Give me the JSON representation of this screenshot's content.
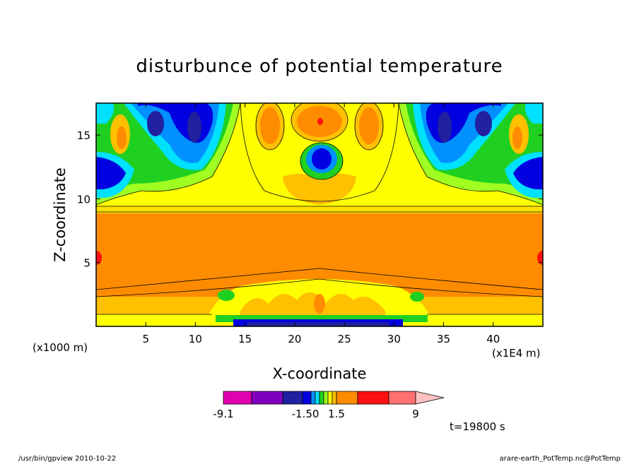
{
  "chart_data": {
    "type": "heatmap",
    "title": "disturbunce of potential temperature",
    "xlabel": "X-coordinate",
    "ylabel": "Z-coordinate",
    "x_unit_left": "(x1000 m)",
    "x_unit_right": "(x1E4 m)",
    "xlim": [
      0,
      45
    ],
    "ylim": [
      0,
      17.5
    ],
    "x_ticks": [
      "5",
      "10",
      "15",
      "20",
      "25",
      "30",
      "35",
      "40"
    ],
    "y_ticks": [
      "5",
      "10",
      "15"
    ],
    "time_label": "t=19800 s",
    "colorbar": {
      "labels": [
        "-9.1",
        "-1.50",
        "1.5",
        "9"
      ],
      "colors": [
        "#e000b0",
        "#8000c0",
        "#2020a0",
        "#0000e0",
        "#0090ff",
        "#00e0ff",
        "#20d020",
        "#a0ff20",
        "#ffff00",
        "#ffc000",
        "#ff8c00",
        "#ff1010",
        "#ff7070",
        "#ffc0c0"
      ]
    }
  },
  "footer": {
    "left": "/usr/bin/gpview   2010-10-22",
    "right": "arare-earth_PotTemp.nc@PotTemp"
  }
}
